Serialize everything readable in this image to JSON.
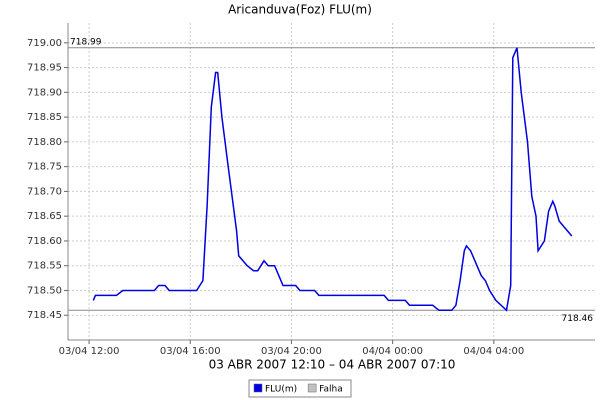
{
  "chart_data": {
    "type": "line",
    "title": "Aricanduva(Foz) FLU(m)",
    "subtitle": "03 ABR 2007 12:10 – 04 ABR 2007 07:10",
    "x": [
      "03/04 12:10",
      "03/04 12:15",
      "03/04 13:05",
      "03/04 13:20",
      "03/04 14:35",
      "03/04 14:45",
      "03/04 15:00",
      "03/04 15:10",
      "03/04 16:15",
      "03/04 16:30",
      "03/04 16:40",
      "03/04 16:50",
      "03/04 17:00",
      "03/04 17:05",
      "03/04 17:15",
      "03/04 17:30",
      "03/04 17:50",
      "03/04 17:55",
      "03/04 18:15",
      "03/04 18:30",
      "03/04 18:40",
      "03/04 18:55",
      "03/04 19:05",
      "03/04 19:20",
      "03/04 19:30",
      "03/04 19:40",
      "03/04 20:10",
      "03/04 20:20",
      "03/04 20:55",
      "03/04 21:05",
      "03/04 23:40",
      "03/04 23:50",
      "04/04 00:30",
      "04/04 00:40",
      "04/04 01:35",
      "04/04 01:50",
      "04/04 02:20",
      "04/04 02:30",
      "04/04 02:40",
      "04/04 02:50",
      "04/04 02:55",
      "04/04 03:05",
      "04/04 03:20",
      "04/04 03:30",
      "04/04 03:40",
      "04/04 03:50",
      "04/04 04:05",
      "04/04 04:30",
      "04/04 04:40",
      "04/04 04:45",
      "04/04 04:55",
      "04/04 05:05",
      "04/04 05:20",
      "04/04 05:30",
      "04/04 05:40",
      "04/04 05:45",
      "04/04 06:00",
      "04/04 06:10",
      "04/04 06:20",
      "04/04 06:25",
      "04/04 06:35",
      "04/04 06:45",
      "04/04 07:05"
    ],
    "series": [
      {
        "name": "FLU(m)",
        "color": "#0000e0",
        "values": [
          718.48,
          718.49,
          718.49,
          718.5,
          718.5,
          718.51,
          718.51,
          718.5,
          718.5,
          718.52,
          718.67,
          718.87,
          718.94,
          718.94,
          718.85,
          718.75,
          718.62,
          718.57,
          718.55,
          718.54,
          718.54,
          718.56,
          718.55,
          718.55,
          718.53,
          718.51,
          718.51,
          718.5,
          718.5,
          718.49,
          718.49,
          718.48,
          718.48,
          718.47,
          718.47,
          718.46,
          718.46,
          718.47,
          718.52,
          718.58,
          718.59,
          718.58,
          718.55,
          718.53,
          718.52,
          718.5,
          718.48,
          718.46,
          718.51,
          718.97,
          718.99,
          718.9,
          718.8,
          718.69,
          718.65,
          718.58,
          718.6,
          718.66,
          718.68,
          718.67,
          718.64,
          718.63,
          718.61
        ]
      }
    ],
    "extra_legend": [
      {
        "name": "Falha",
        "color": "#c0c0c0"
      }
    ],
    "markers": [
      718.99,
      718.46
    ],
    "xlim": [
      "03/04 11:10",
      "04/04 08:00"
    ],
    "xticks": [
      "03/04 12:00",
      "03/04 16:00",
      "03/04 20:00",
      "04/04 00:00",
      "04/04 04:00"
    ],
    "ylim": [
      718.4,
      719.04
    ],
    "yticks": [
      718.45,
      {
        "value": 718.5,
        "label": "718.50"
      },
      718.55,
      {
        "value": 718.6,
        "label": "718.60"
      },
      718.65,
      {
        "value": 718.7,
        "label": "718.70"
      },
      718.75,
      {
        "value": 718.8,
        "label": "718.80"
      },
      718.85,
      {
        "value": 718.9,
        "label": "718.90"
      },
      718.95,
      {
        "value": 719.0,
        "label": "719.00"
      }
    ],
    "grid": true
  }
}
